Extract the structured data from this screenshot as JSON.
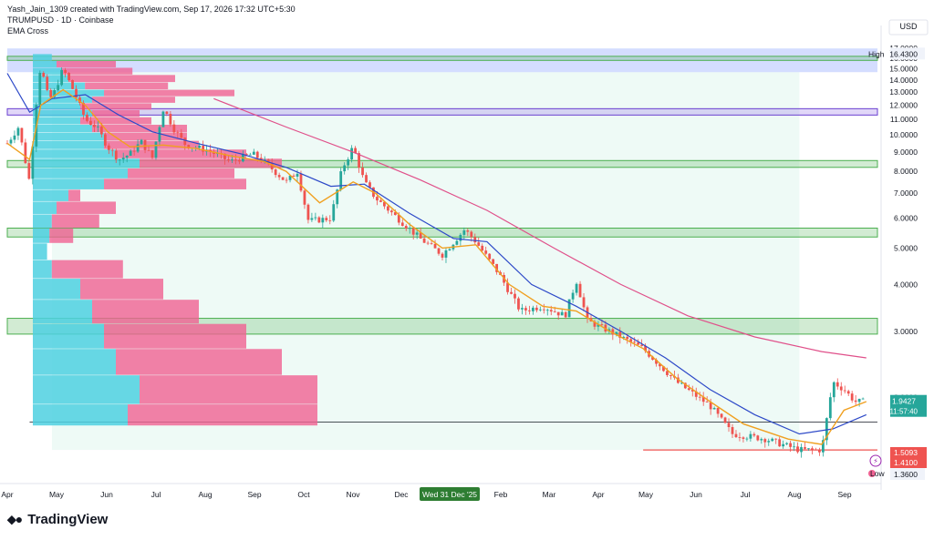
{
  "header": {
    "created_line": "Yash_Jain_1309 created with TradingView.com, Sep 17, 2026 17:32 UTC+5:30",
    "symbol_line": "TRUMPUSD · 1D · Coinbase",
    "indicator": "EMA Cross"
  },
  "currency": "USD",
  "brand": {
    "logo_icon": "tradingview-logo-icon",
    "name": "TradingView"
  },
  "colors": {
    "up": "#26a69a",
    "down": "#ef5350",
    "support_zone": "#4caf50",
    "resistance_zone": "#9c7be8",
    "range_zone": "#6f8fff",
    "ema_fast": "#f0a020",
    "ema_slow": "#2d49c8",
    "ema_long": "#e0508a",
    "vp_up": "#4dd0e1",
    "vp_down": "#f06292"
  },
  "chart_data": {
    "type": "candlestick",
    "symbol": "TRUMPUSD",
    "timeframe": "1D",
    "exchange": "Coinbase",
    "y_axis": {
      "ticks": [
        "17.0000",
        "16.0000",
        "15.0000",
        "14.0000",
        "13.0000",
        "12.0000",
        "11.0000",
        "10.0000",
        "9.0000",
        "8.0000",
        "7.0000",
        "6.0000",
        "5.0000",
        "4.0000",
        "3.0000",
        "2.0000"
      ],
      "scale": "log",
      "range": [
        1.2,
        17.5
      ]
    },
    "x_axis": {
      "ticks": [
        "Apr",
        "May",
        "Jun",
        "Jul",
        "Aug",
        "Sep",
        "Oct",
        "Nov",
        "Dec",
        "Feb",
        "Mar",
        "Apr",
        "May",
        "Jun",
        "Jul",
        "Aug",
        "Sep"
      ],
      "highlight_label": "Wed 31 Dec '25"
    },
    "high": {
      "label": "High",
      "value": "16.4300"
    },
    "low": {
      "label": "Low",
      "value": "1.3600"
    },
    "price_labels": [
      {
        "value": "1.9427",
        "sub": "11:57:40",
        "color": "#26a69a"
      },
      {
        "value": "1.5093",
        "color": "#ef5350"
      },
      {
        "value": "1.4100",
        "color": "#ef5350"
      }
    ],
    "key_path": [
      [
        0,
        9.5
      ],
      [
        2,
        10.5
      ],
      [
        4,
        7.5
      ],
      [
        5,
        11.5
      ],
      [
        6,
        15.5
      ],
      [
        7,
        13
      ],
      [
        8,
        12.5
      ],
      [
        10,
        15
      ],
      [
        12,
        13
      ],
      [
        14,
        11
      ],
      [
        16,
        10.5
      ],
      [
        18,
        9.3
      ],
      [
        20,
        8.6
      ],
      [
        22,
        8.9
      ],
      [
        24,
        9.6
      ],
      [
        26,
        8.7
      ],
      [
        28,
        11.8
      ],
      [
        30,
        10.3
      ],
      [
        32,
        9.4
      ],
      [
        36,
        9.1
      ],
      [
        40,
        8.5
      ],
      [
        44,
        8.9
      ],
      [
        46,
        8.5
      ],
      [
        50,
        7.5
      ],
      [
        52,
        8.0
      ],
      [
        54,
        5.9
      ],
      [
        58,
        6.0
      ],
      [
        60,
        8.1
      ],
      [
        62,
        9.3
      ],
      [
        64,
        7.5
      ],
      [
        66,
        6.8
      ],
      [
        70,
        6.0
      ],
      [
        74,
        5.3
      ],
      [
        78,
        4.8
      ],
      [
        82,
        5.6
      ],
      [
        84,
        5.2
      ],
      [
        88,
        4.3
      ],
      [
        92,
        3.4
      ],
      [
        96,
        3.5
      ],
      [
        100,
        3.3
      ],
      [
        102,
        4.1
      ],
      [
        104,
        3.2
      ],
      [
        108,
        3.0
      ],
      [
        114,
        2.7
      ],
      [
        120,
        2.2
      ],
      [
        126,
        1.9
      ],
      [
        130,
        1.6
      ],
      [
        136,
        1.55
      ],
      [
        142,
        1.45
      ],
      [
        146,
        1.45
      ],
      [
        148,
        2.2
      ],
      [
        150,
        2.1
      ],
      [
        152,
        1.95
      ],
      [
        154,
        1.95
      ]
    ],
    "ema_fast_path": [
      [
        0,
        9.5
      ],
      [
        4,
        8.6
      ],
      [
        6,
        12
      ],
      [
        10,
        13.2
      ],
      [
        14,
        12
      ],
      [
        18,
        10.2
      ],
      [
        22,
        9.3
      ],
      [
        28,
        9.4
      ],
      [
        34,
        9.2
      ],
      [
        40,
        8.8
      ],
      [
        46,
        8.5
      ],
      [
        50,
        8.0
      ],
      [
        56,
        6.6
      ],
      [
        62,
        7.5
      ],
      [
        66,
        7.0
      ],
      [
        72,
        5.8
      ],
      [
        78,
        5.0
      ],
      [
        84,
        5.1
      ],
      [
        90,
        4.0
      ],
      [
        96,
        3.5
      ],
      [
        102,
        3.4
      ],
      [
        108,
        3.0
      ],
      [
        114,
        2.7
      ],
      [
        120,
        2.25
      ],
      [
        126,
        1.95
      ],
      [
        132,
        1.7
      ],
      [
        140,
        1.55
      ],
      [
        146,
        1.5
      ],
      [
        150,
        1.85
      ],
      [
        154,
        1.95
      ]
    ],
    "ema_slow_path": [
      [
        0,
        14.6
      ],
      [
        4,
        11.5
      ],
      [
        8,
        12.5
      ],
      [
        14,
        12.8
      ],
      [
        20,
        11.3
      ],
      [
        26,
        10.2
      ],
      [
        34,
        9.5
      ],
      [
        42,
        8.9
      ],
      [
        50,
        8.2
      ],
      [
        58,
        7.3
      ],
      [
        64,
        7.4
      ],
      [
        72,
        6.2
      ],
      [
        80,
        5.3
      ],
      [
        86,
        5.2
      ],
      [
        94,
        4.0
      ],
      [
        102,
        3.5
      ],
      [
        110,
        3.0
      ],
      [
        118,
        2.55
      ],
      [
        126,
        2.1
      ],
      [
        134,
        1.8
      ],
      [
        142,
        1.6
      ],
      [
        148,
        1.65
      ],
      [
        154,
        1.8
      ]
    ],
    "ema_long_path": [
      [
        37,
        12.5
      ],
      [
        50,
        10.5
      ],
      [
        62,
        9.0
      ],
      [
        74,
        7.6
      ],
      [
        86,
        6.3
      ],
      [
        98,
        5.0
      ],
      [
        110,
        4.0
      ],
      [
        122,
        3.3
      ],
      [
        134,
        2.9
      ],
      [
        146,
        2.65
      ],
      [
        154,
        2.55
      ]
    ],
    "zones": [
      {
        "kind": "range",
        "from": 14.7,
        "to": 17.0
      },
      {
        "kind": "support",
        "from": 15.8,
        "to": 16.2
      },
      {
        "kind": "resistance",
        "from": 11.3,
        "to": 11.75
      },
      {
        "kind": "support",
        "from": 8.2,
        "to": 8.55
      },
      {
        "kind": "support",
        "from": 5.35,
        "to": 5.65
      },
      {
        "kind": "support",
        "from": 2.95,
        "to": 3.25
      }
    ],
    "volume_profile": [
      {
        "price": 16.1,
        "up": 0.08,
        "down": 0.0
      },
      {
        "price": 15.4,
        "up": 0.1,
        "down": 0.25
      },
      {
        "price": 14.8,
        "up": 0.12,
        "down": 0.3
      },
      {
        "price": 14.1,
        "up": 0.15,
        "down": 0.45
      },
      {
        "price": 13.5,
        "up": 0.22,
        "down": 0.35
      },
      {
        "price": 12.9,
        "up": 0.3,
        "down": 0.55
      },
      {
        "price": 12.4,
        "up": 0.25,
        "down": 0.35
      },
      {
        "price": 11.9,
        "up": 0.2,
        "down": 0.3
      },
      {
        "price": 11.4,
        "up": 0.25,
        "down": 0.2
      },
      {
        "price": 10.9,
        "up": 0.2,
        "down": 0.3
      },
      {
        "price": 10.4,
        "up": 0.25,
        "down": 0.4
      },
      {
        "price": 9.9,
        "up": 0.3,
        "down": 0.35
      },
      {
        "price": 9.4,
        "up": 0.3,
        "down": 0.4
      },
      {
        "price": 8.9,
        "up": 0.35,
        "down": 0.55
      },
      {
        "price": 8.4,
        "up": 0.45,
        "down": 0.6
      },
      {
        "price": 7.9,
        "up": 0.4,
        "down": 0.45
      },
      {
        "price": 7.4,
        "up": 0.3,
        "down": 0.6
      },
      {
        "price": 6.9,
        "up": 0.15,
        "down": 0.05
      },
      {
        "price": 6.4,
        "up": 0.1,
        "down": 0.25
      },
      {
        "price": 5.9,
        "up": 0.08,
        "down": 0.2
      },
      {
        "price": 5.4,
        "up": 0.07,
        "down": 0.1
      },
      {
        "price": 4.9,
        "up": 0.06,
        "down": 0.0
      },
      {
        "price": 4.4,
        "up": 0.08,
        "down": 0.3
      },
      {
        "price": 3.9,
        "up": 0.2,
        "down": 0.35
      },
      {
        "price": 3.4,
        "up": 0.25,
        "down": 0.45
      },
      {
        "price": 2.9,
        "up": 0.3,
        "down": 0.6
      },
      {
        "price": 2.5,
        "up": 0.35,
        "down": 0.7
      },
      {
        "price": 2.1,
        "up": 0.45,
        "down": 0.75
      },
      {
        "price": 1.75,
        "up": 0.4,
        "down": 0.8
      }
    ]
  }
}
